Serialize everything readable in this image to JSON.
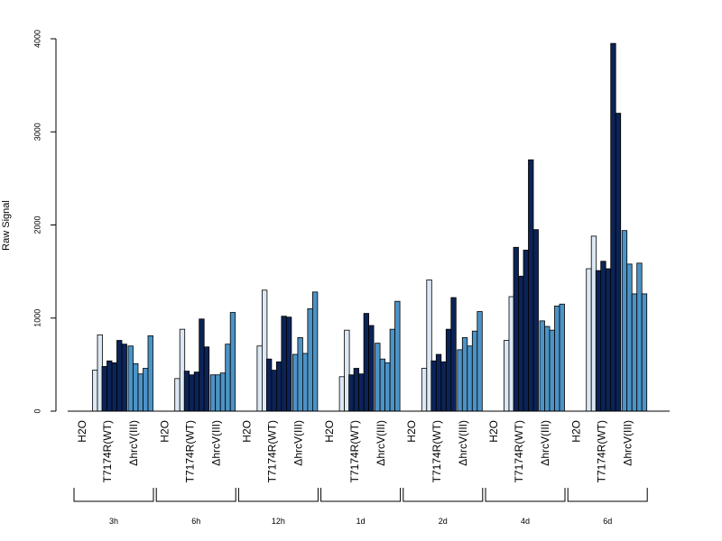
{
  "chart_data": {
    "type": "bar",
    "title": "",
    "xlabel": "",
    "ylabel": "Raw Signal",
    "ylim": [
      0,
      4000
    ],
    "yticks": [
      "0",
      "1000",
      "2000",
      "3000",
      "4000"
    ],
    "conditions": [
      "H2O",
      "T7174R(WT)",
      "ΔhrcV(III)"
    ],
    "colors": {
      "H2O": "#dde8f5",
      "T7174R(WT)": "#0b2357",
      "ΔhrcV(III)": "#4c93c6"
    },
    "groups": [
      {
        "time": "3h",
        "H2O": [
          0,
          440,
          820
        ],
        "T7174R(WT)": [
          480,
          540,
          520,
          760,
          720,
          0
        ],
        "ΔhrcV(III)": [
          700,
          510,
          400,
          460,
          810,
          0
        ]
      },
      {
        "time": "6h",
        "H2O": [
          0,
          350,
          880
        ],
        "T7174R(WT)": [
          430,
          390,
          420,
          990,
          690,
          0
        ],
        "ΔhrcV(III)": [
          390,
          390,
          410,
          720,
          1060,
          0
        ]
      },
      {
        "time": "12h",
        "H2O": [
          0,
          700,
          1300
        ],
        "T7174R(WT)": [
          560,
          440,
          530,
          1020,
          1010,
          0
        ],
        "ΔhrcV(III)": [
          610,
          790,
          620,
          1100,
          1280,
          0
        ]
      },
      {
        "time": "1d",
        "H2O": [
          0,
          370,
          870
        ],
        "T7174R(WT)": [
          390,
          460,
          400,
          1050,
          920,
          0
        ],
        "ΔhrcV(III)": [
          730,
          560,
          520,
          880,
          1180,
          0
        ]
      },
      {
        "time": "2d",
        "H2O": [
          0,
          460,
          1410
        ],
        "T7174R(WT)": [
          540,
          610,
          530,
          880,
          1220,
          0
        ],
        "ΔhrcV(III)": [
          660,
          790,
          700,
          860,
          1070,
          0
        ]
      },
      {
        "time": "4d",
        "H2O": [
          0,
          760,
          1230
        ],
        "T7174R(WT)": [
          1760,
          1450,
          1730,
          2700,
          1950,
          0
        ],
        "ΔhrcV(III)": [
          970,
          910,
          870,
          1130,
          1150,
          0
        ]
      },
      {
        "time": "6d",
        "H2O": [
          0,
          1530,
          1880
        ],
        "T7174R(WT)": [
          1510,
          1610,
          1530,
          3950,
          3200,
          0
        ],
        "ΔhrcV(III)": [
          1940,
          1580,
          1260,
          1590,
          1260,
          0
        ]
      }
    ],
    "grid": false,
    "legend": "none"
  }
}
